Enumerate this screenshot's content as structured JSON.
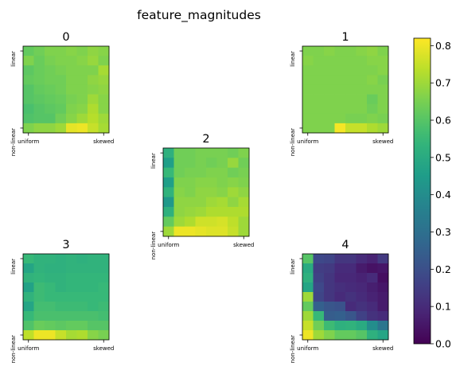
{
  "chart_data": {
    "type": "heatmap",
    "title": "feature_magnitudes",
    "colormap": "viridis",
    "colorbar": {
      "range": [
        0.0,
        0.82
      ],
      "ticks": [
        "0.0",
        "0.1",
        "0.2",
        "0.3",
        "0.4",
        "0.5",
        "0.6",
        "0.7",
        "0.8"
      ]
    },
    "x_tick_labels": [
      "uniform",
      "skewed"
    ],
    "y_tick_labels": [
      "linear",
      "non-linear"
    ],
    "panels": [
      {
        "title": "0",
        "values": [
          [
            0.62,
            0.64,
            0.66,
            0.66,
            0.67,
            0.66,
            0.68,
            0.67
          ],
          [
            0.66,
            0.63,
            0.65,
            0.66,
            0.66,
            0.67,
            0.69,
            0.66
          ],
          [
            0.61,
            0.63,
            0.64,
            0.65,
            0.66,
            0.66,
            0.66,
            0.71
          ],
          [
            0.62,
            0.63,
            0.64,
            0.64,
            0.66,
            0.66,
            0.68,
            0.69
          ],
          [
            0.6,
            0.62,
            0.63,
            0.64,
            0.66,
            0.66,
            0.67,
            0.68
          ],
          [
            0.6,
            0.61,
            0.62,
            0.63,
            0.65,
            0.66,
            0.7,
            0.67
          ],
          [
            0.58,
            0.6,
            0.61,
            0.62,
            0.66,
            0.67,
            0.72,
            0.67
          ],
          [
            0.59,
            0.6,
            0.6,
            0.64,
            0.67,
            0.7,
            0.73,
            0.7
          ],
          [
            0.66,
            0.68,
            0.68,
            0.7,
            0.79,
            0.8,
            0.75,
            0.71
          ]
        ]
      },
      {
        "title": "1",
        "values": [
          [
            0.66,
            0.66,
            0.67,
            0.66,
            0.66,
            0.67,
            0.68,
            0.66
          ],
          [
            0.67,
            0.66,
            0.66,
            0.66,
            0.66,
            0.66,
            0.67,
            0.67
          ],
          [
            0.66,
            0.66,
            0.66,
            0.66,
            0.66,
            0.66,
            0.66,
            0.67
          ],
          [
            0.66,
            0.66,
            0.66,
            0.66,
            0.66,
            0.66,
            0.67,
            0.65
          ],
          [
            0.66,
            0.66,
            0.66,
            0.66,
            0.66,
            0.66,
            0.66,
            0.66
          ],
          [
            0.66,
            0.66,
            0.66,
            0.66,
            0.66,
            0.66,
            0.63,
            0.66
          ],
          [
            0.66,
            0.66,
            0.66,
            0.66,
            0.66,
            0.66,
            0.64,
            0.66
          ],
          [
            0.66,
            0.66,
            0.66,
            0.66,
            0.65,
            0.65,
            0.66,
            0.65
          ],
          [
            0.66,
            0.66,
            0.66,
            0.81,
            0.75,
            0.75,
            0.72,
            0.7
          ]
        ]
      },
      {
        "title": "2",
        "values": [
          [
            0.52,
            0.64,
            0.64,
            0.65,
            0.65,
            0.65,
            0.64,
            0.66
          ],
          [
            0.46,
            0.64,
            0.64,
            0.65,
            0.64,
            0.65,
            0.69,
            0.64
          ],
          [
            0.55,
            0.64,
            0.65,
            0.65,
            0.66,
            0.66,
            0.64,
            0.65
          ],
          [
            0.46,
            0.66,
            0.66,
            0.67,
            0.67,
            0.66,
            0.67,
            0.66
          ],
          [
            0.53,
            0.67,
            0.66,
            0.68,
            0.68,
            0.67,
            0.7,
            0.68
          ],
          [
            0.44,
            0.68,
            0.68,
            0.68,
            0.7,
            0.71,
            0.68,
            0.71
          ],
          [
            0.52,
            0.68,
            0.69,
            0.7,
            0.72,
            0.72,
            0.72,
            0.72
          ],
          [
            0.62,
            0.7,
            0.72,
            0.76,
            0.76,
            0.77,
            0.74,
            0.7
          ],
          [
            0.7,
            0.8,
            0.8,
            0.79,
            0.78,
            0.78,
            0.75,
            0.7
          ]
        ]
      },
      {
        "title": "3",
        "values": [
          [
            0.55,
            0.53,
            0.53,
            0.52,
            0.53,
            0.52,
            0.53,
            0.53
          ],
          [
            0.48,
            0.53,
            0.52,
            0.52,
            0.53,
            0.53,
            0.53,
            0.53
          ],
          [
            0.53,
            0.54,
            0.53,
            0.53,
            0.54,
            0.54,
            0.54,
            0.54
          ],
          [
            0.47,
            0.56,
            0.55,
            0.53,
            0.54,
            0.54,
            0.54,
            0.55
          ],
          [
            0.53,
            0.56,
            0.55,
            0.55,
            0.55,
            0.55,
            0.55,
            0.55
          ],
          [
            0.48,
            0.57,
            0.57,
            0.56,
            0.56,
            0.56,
            0.55,
            0.56
          ],
          [
            0.55,
            0.58,
            0.58,
            0.58,
            0.58,
            0.58,
            0.58,
            0.57
          ],
          [
            0.59,
            0.63,
            0.62,
            0.61,
            0.62,
            0.62,
            0.6,
            0.6
          ],
          [
            0.74,
            0.8,
            0.8,
            0.75,
            0.71,
            0.72,
            0.67,
            0.65
          ]
        ]
      },
      {
        "title": "4",
        "values": [
          [
            0.6,
            0.18,
            0.17,
            0.13,
            0.13,
            0.1,
            0.08,
            0.14
          ],
          [
            0.5,
            0.15,
            0.14,
            0.1,
            0.1,
            0.06,
            0.04,
            0.05
          ],
          [
            0.52,
            0.16,
            0.13,
            0.09,
            0.09,
            0.08,
            0.1,
            0.03
          ],
          [
            0.48,
            0.18,
            0.13,
            0.11,
            0.1,
            0.09,
            0.07,
            0.05
          ],
          [
            0.7,
            0.17,
            0.13,
            0.1,
            0.12,
            0.1,
            0.08,
            0.06
          ],
          [
            0.62,
            0.25,
            0.22,
            0.21,
            0.1,
            0.12,
            0.1,
            0.06
          ],
          [
            0.7,
            0.55,
            0.24,
            0.25,
            0.22,
            0.16,
            0.12,
            0.1
          ],
          [
            0.75,
            0.64,
            0.56,
            0.52,
            0.53,
            0.5,
            0.4,
            0.32
          ],
          [
            0.8,
            0.7,
            0.66,
            0.62,
            0.62,
            0.6,
            0.52,
            0.48
          ]
        ]
      }
    ]
  }
}
